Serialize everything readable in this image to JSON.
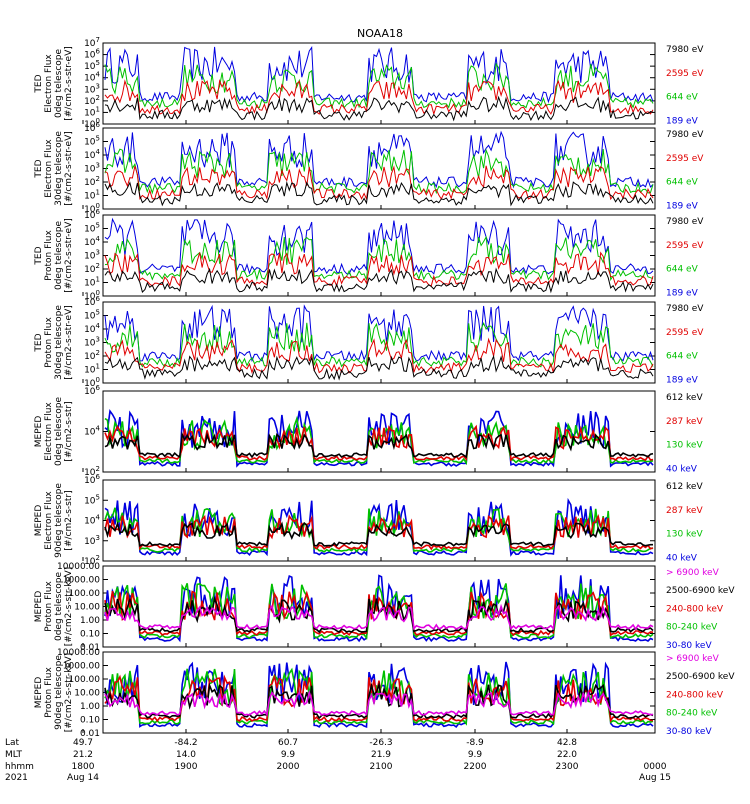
{
  "chart_data": {
    "type": "line",
    "title": "NOAA18",
    "x_axis": {
      "row_labels": [
        "Lat",
        "MLT",
        "hhmm",
        "2021"
      ],
      "ticks": [
        {
          "lat": "49.7",
          "mlt": "21.2",
          "hhmm": "1800",
          "date": "Aug 14"
        },
        {
          "lat": "-84.2",
          "mlt": "14.0",
          "hhmm": "1900",
          "date": ""
        },
        {
          "lat": "60.7",
          "mlt": "9.9",
          "hhmm": "2000",
          "date": ""
        },
        {
          "lat": "-26.3",
          "mlt": "21.9",
          "hhmm": "2100",
          "date": ""
        },
        {
          "lat": "-8.9",
          "mlt": "9.9",
          "hhmm": "2200",
          "date": ""
        },
        {
          "lat": "42.8",
          "mlt": "22.0",
          "hhmm": "2300",
          "date": ""
        },
        {
          "lat": "",
          "mlt": "",
          "hhmm": "0000",
          "date": "Aug 15"
        }
      ]
    },
    "panels": [
      {
        "ylabel": [
          "TED",
          "Electron Flux",
          "0deg telescope",
          "[#/cm2-s-str-eV]"
        ],
        "log": true,
        "ylim": [
          1,
          10000000
        ],
        "ticks": [
          "10^0",
          "10^1",
          "10^2",
          "10^3",
          "10^4",
          "10^5",
          "10^6",
          "10^7"
        ],
        "legend": [
          {
            "label": "7980 eV",
            "color": "#000000"
          },
          {
            "label": "2595 eV",
            "color": "#e00000"
          },
          {
            "label": "644 eV",
            "color": "#00c000"
          },
          {
            "label": "189 eV",
            "color": "#0000e0"
          }
        ]
      },
      {
        "ylabel": [
          "TED",
          "Electron Flux",
          "30deg telescope",
          "[#/cm2-s-str-eV]"
        ],
        "log": true,
        "ylim": [
          1,
          1000000
        ],
        "ticks": [
          "10^0",
          "10^1",
          "10^2",
          "10^3",
          "10^4",
          "10^5",
          "10^6"
        ],
        "legend": [
          {
            "label": "7980 eV",
            "color": "#000000"
          },
          {
            "label": "2595 eV",
            "color": "#e00000"
          },
          {
            "label": "644 eV",
            "color": "#00c000"
          },
          {
            "label": "189 eV",
            "color": "#0000e0"
          }
        ]
      },
      {
        "ylabel": [
          "TED",
          "Proton Flux",
          "0deg telescope",
          "[#/cm2-s-str-eV]"
        ],
        "log": true,
        "ylim": [
          1,
          1000000
        ],
        "ticks": [
          "10^0",
          "10^1",
          "10^2",
          "10^3",
          "10^4",
          "10^5",
          "10^6"
        ],
        "legend": [
          {
            "label": "7980 eV",
            "color": "#000000"
          },
          {
            "label": "2595 eV",
            "color": "#e00000"
          },
          {
            "label": "644 eV",
            "color": "#00c000"
          },
          {
            "label": "189 eV",
            "color": "#0000e0"
          }
        ]
      },
      {
        "ylabel": [
          "TED",
          "Proton Flux",
          "30deg telescope",
          "[#/cm2-s-str-eV]"
        ],
        "log": true,
        "ylim": [
          1,
          1000000
        ],
        "ticks": [
          "10^0",
          "10^1",
          "10^2",
          "10^3",
          "10^4",
          "10^5",
          "10^6"
        ],
        "legend": [
          {
            "label": "7980 eV",
            "color": "#000000"
          },
          {
            "label": "2595 eV",
            "color": "#e00000"
          },
          {
            "label": "644 eV",
            "color": "#00c000"
          },
          {
            "label": "189 eV",
            "color": "#0000e0"
          }
        ]
      },
      {
        "ylabel": [
          "MEPED",
          "Electron Flux",
          "0deg telescope",
          "[#/cm2-s-str]"
        ],
        "log": true,
        "ylim": [
          100,
          1000000
        ],
        "ticks": [
          "10^2",
          "10^4",
          "10^6"
        ],
        "legend": [
          {
            "label": "612 keV",
            "color": "#000000"
          },
          {
            "label": "287 keV",
            "color": "#e00000"
          },
          {
            "label": "130 keV",
            "color": "#00c000"
          },
          {
            "label": "40 keV",
            "color": "#0000e0"
          }
        ]
      },
      {
        "ylabel": [
          "MEPED",
          "Electron Flux",
          "90deg telescope",
          "[#/cm2-s-str]"
        ],
        "log": true,
        "ylim": [
          100,
          1000000
        ],
        "ticks": [
          "10^2",
          "10^3",
          "10^4",
          "10^5",
          "10^6"
        ],
        "legend": [
          {
            "label": "612 keV",
            "color": "#000000"
          },
          {
            "label": "287 keV",
            "color": "#e00000"
          },
          {
            "label": "130 keV",
            "color": "#00c000"
          },
          {
            "label": "40 keV",
            "color": "#0000e0"
          }
        ]
      },
      {
        "ylabel": [
          "MEPED",
          "Proton Flux",
          "0deg telescope",
          "[#/cm2-s-str-keV]"
        ],
        "log": true,
        "ylim": [
          0.01,
          10000
        ],
        "ticks": [
          "0.01",
          "0.10",
          "1.00",
          "10.00",
          "100.00",
          "1000.00",
          "10000.00"
        ],
        "legend": [
          {
            "label": "> 6900 keV",
            "color": "#e000e0"
          },
          {
            "label": "2500-6900 keV",
            "color": "#000000"
          },
          {
            "label": "240-800 keV",
            "color": "#e00000"
          },
          {
            "label": "80-240 keV",
            "color": "#00c000"
          },
          {
            "label": "30-80 keV",
            "color": "#0000e0"
          }
        ]
      },
      {
        "ylabel": [
          "MEPED",
          "Proton Flux",
          "90deg telescope",
          "[#/cm2-s-str-keV]"
        ],
        "log": true,
        "ylim": [
          0.01,
          10000
        ],
        "ticks": [
          "0.01",
          "0.10",
          "1.00",
          "10.00",
          "100.00",
          "1000.00",
          "10000.00"
        ],
        "legend": [
          {
            "label": "> 6900 keV",
            "color": "#e000e0"
          },
          {
            "label": "2500-6900 keV",
            "color": "#000000"
          },
          {
            "label": "240-800 keV",
            "color": "#e00000"
          },
          {
            "label": "80-240 keV",
            "color": "#00c000"
          },
          {
            "label": "30-80 keV",
            "color": "#0000e0"
          }
        ]
      }
    ]
  }
}
